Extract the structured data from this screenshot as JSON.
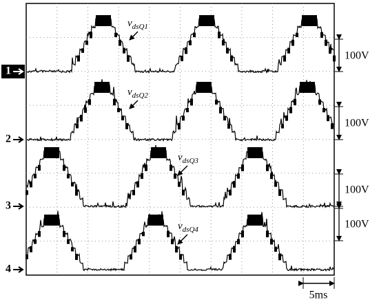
{
  "channels": [
    {
      "marker": "1",
      "label": "v",
      "subscript": "dsQ1",
      "scale": "100V"
    },
    {
      "marker": "2",
      "label": "v",
      "subscript": "dsQ2",
      "scale": "100V"
    },
    {
      "marker": "3",
      "label": "v",
      "subscript": "dsQ3",
      "scale": "100V"
    },
    {
      "marker": "4",
      "label": "v",
      "subscript": "dsQ4",
      "scale": "100V"
    }
  ],
  "time_scale": "5ms"
}
